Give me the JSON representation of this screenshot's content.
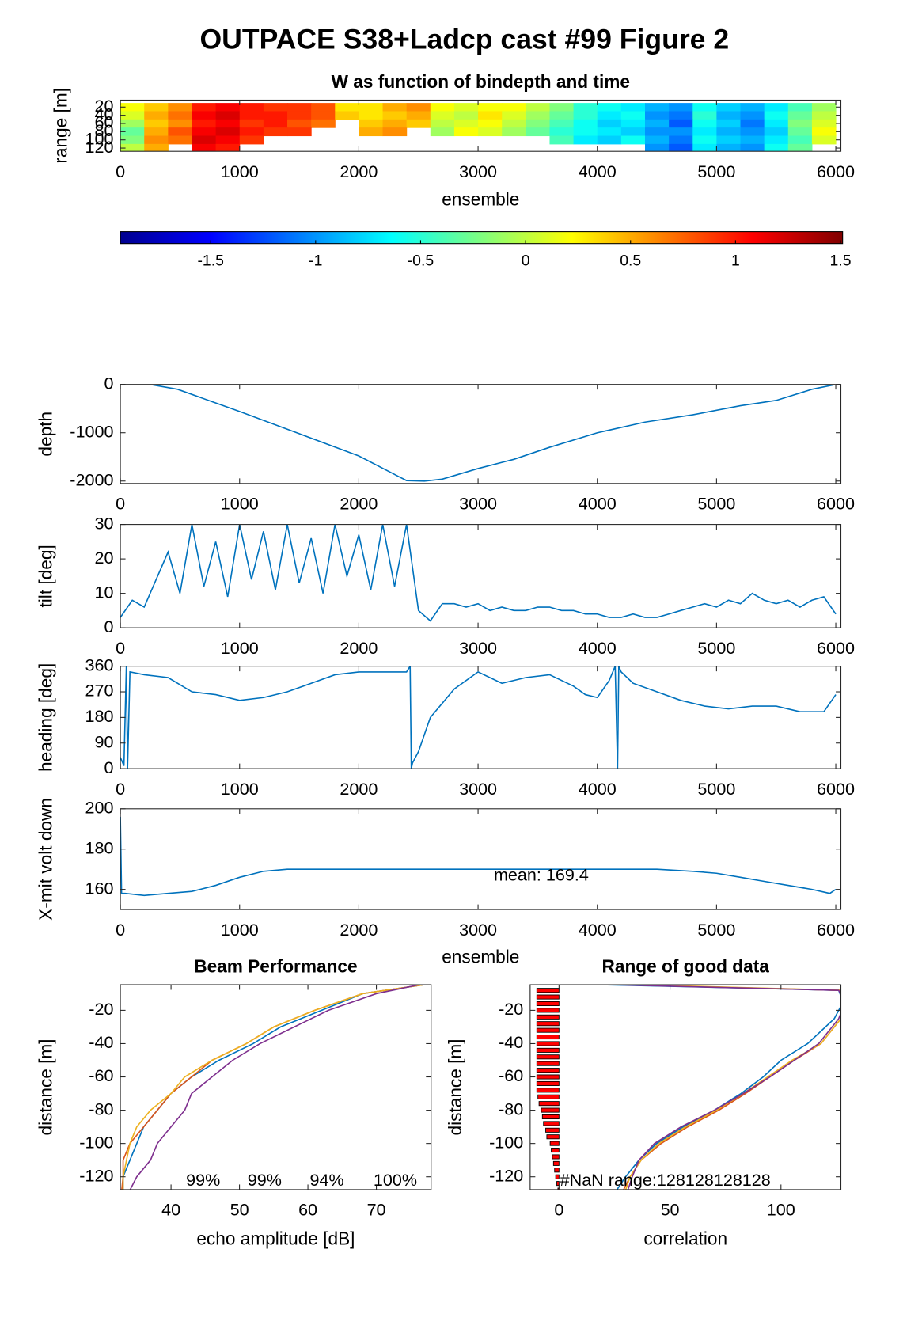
{
  "title": "OUTPACE S38+Ladcp cast #99 Figure 2",
  "chart_data": [
    {
      "type": "heatmap",
      "title": "W as function of bindepth and time",
      "xlabel": "ensemble",
      "ylabel": "range [m]",
      "colormap": "jet",
      "xlim": [
        0,
        6043
      ],
      "xticks": [
        0,
        1000,
        2000,
        3000,
        4000,
        5000,
        6000
      ],
      "ylim": [
        3,
        128
      ],
      "yreverse": true,
      "yticks": [
        20,
        40,
        60,
        80,
        100,
        120
      ],
      "x": [
        100,
        300,
        500,
        700,
        900,
        1100,
        1300,
        1500,
        1700,
        1900,
        2100,
        2300,
        2500,
        2700,
        2900,
        3100,
        3300,
        3500,
        3700,
        3900,
        4100,
        4300,
        4500,
        4700,
        4900,
        5100,
        5300,
        5500,
        5700,
        5900
      ],
      "y": [
        20,
        40,
        60,
        80,
        100,
        120
      ],
      "values": [
        [
          0.2,
          0.4,
          0.6,
          1.0,
          1.1,
          1.0,
          0.9,
          0.9,
          0.8,
          0.3,
          0.3,
          0.5,
          0.6,
          0.2,
          0.1,
          0.2,
          0.2,
          0.0,
          -0.2,
          -0.5,
          -0.6,
          -0.7,
          -0.9,
          -1.0,
          -0.6,
          -0.8,
          -0.9,
          -0.7,
          -0.4,
          -0.1
        ],
        [
          0.1,
          0.5,
          0.7,
          1.1,
          1.2,
          1.0,
          1.0,
          0.9,
          0.8,
          0.4,
          0.3,
          0.4,
          0.5,
          0.1,
          0.0,
          0.3,
          0.1,
          -0.1,
          -0.3,
          -0.5,
          -0.7,
          -0.6,
          -1.0,
          -1.1,
          -0.5,
          -0.9,
          -1.0,
          -0.6,
          -0.3,
          0.0
        ],
        [
          -0.1,
          0.4,
          0.6,
          1.0,
          1.1,
          0.9,
          1.0,
          0.8,
          0.7,
          null,
          0.4,
          0.5,
          0.4,
          0.0,
          0.1,
          0.2,
          0.0,
          -0.2,
          -0.4,
          -0.6,
          -0.8,
          -0.7,
          -0.9,
          -1.2,
          -0.6,
          -0.8,
          -1.1,
          -0.7,
          -0.2,
          0.1
        ],
        [
          -0.3,
          0.5,
          0.8,
          1.1,
          1.2,
          1.0,
          0.9,
          0.9,
          null,
          null,
          0.5,
          0.6,
          null,
          -0.1,
          0.2,
          0.1,
          -0.1,
          -0.3,
          -0.5,
          -0.6,
          -0.7,
          -0.8,
          -1.0,
          -1.0,
          -0.7,
          -0.9,
          -1.0,
          -0.8,
          -0.3,
          0.2
        ],
        [
          -0.2,
          0.6,
          0.7,
          1.2,
          1.1,
          0.9,
          null,
          null,
          null,
          null,
          null,
          null,
          null,
          null,
          null,
          null,
          null,
          null,
          -0.4,
          -0.7,
          -0.8,
          -0.6,
          -0.9,
          -1.1,
          -0.6,
          -0.8,
          -0.9,
          -0.7,
          -0.4,
          0.1
        ],
        [
          0.0,
          0.5,
          null,
          1.1,
          1.0,
          null,
          null,
          null,
          null,
          null,
          null,
          null,
          null,
          null,
          null,
          null,
          null,
          null,
          null,
          null,
          null,
          null,
          -1.0,
          -1.2,
          -0.7,
          -0.9,
          -1.0,
          -0.6,
          -0.3,
          null
        ]
      ],
      "clim": [
        -1.93,
        1.51
      ],
      "cticks": [
        -1.5,
        -1,
        -0.5,
        0,
        0.5,
        1,
        1.5
      ]
    },
    {
      "type": "line",
      "ylabel": "depth",
      "xlim": [
        0,
        6043
      ],
      "xticks": [
        0,
        1000,
        2000,
        3000,
        4000,
        5000,
        6000
      ],
      "ylim": [
        -2050,
        0
      ],
      "yticks": [
        0,
        -1000,
        -2000
      ],
      "x": [
        0,
        250,
        480,
        1000,
        1500,
        2000,
        2400,
        2550,
        2700,
        3000,
        3300,
        3600,
        4000,
        4400,
        4800,
        5200,
        5500,
        5800,
        6000
      ],
      "series": [
        {
          "color": "#0072bd",
          "values": [
            0,
            0,
            -100,
            -560,
            -1020,
            -1480,
            -1990,
            -2000,
            -1960,
            -1740,
            -1550,
            -1300,
            -1000,
            -780,
            -630,
            -440,
            -330,
            -100,
            0
          ]
        }
      ]
    },
    {
      "type": "line",
      "ylabel": "tilt [deg]",
      "xlim": [
        0,
        6043
      ],
      "xticks": [
        0,
        1000,
        2000,
        3000,
        4000,
        5000,
        6000
      ],
      "ylim": [
        0,
        30
      ],
      "yticks": [
        0,
        10,
        20,
        30
      ],
      "x": [
        0,
        100,
        200,
        300,
        400,
        500,
        600,
        700,
        800,
        900,
        1000,
        1100,
        1200,
        1300,
        1400,
        1500,
        1600,
        1700,
        1800,
        1900,
        2000,
        2100,
        2200,
        2300,
        2400,
        2500,
        2600,
        2700,
        2800,
        2900,
        3000,
        3100,
        3200,
        3300,
        3400,
        3500,
        3600,
        3700,
        3800,
        3900,
        4000,
        4100,
        4200,
        4300,
        4400,
        4500,
        4600,
        4700,
        4800,
        4900,
        5000,
        5100,
        5200,
        5300,
        5400,
        5500,
        5600,
        5700,
        5800,
        5900,
        6000
      ],
      "series": [
        {
          "color": "#0072bd",
          "values": [
            3,
            8,
            6,
            14,
            22,
            10,
            30,
            12,
            25,
            9,
            30,
            14,
            28,
            11,
            30,
            13,
            26,
            10,
            30,
            15,
            27,
            11,
            30,
            12,
            30,
            5,
            2,
            7,
            7,
            6,
            7,
            5,
            6,
            5,
            5,
            6,
            6,
            5,
            5,
            4,
            4,
            3,
            3,
            4,
            3,
            3,
            4,
            5,
            6,
            7,
            6,
            8,
            7,
            10,
            8,
            7,
            8,
            6,
            8,
            9,
            4
          ]
        }
      ]
    },
    {
      "type": "line",
      "ylabel": "heading [deg]",
      "xlim": [
        0,
        6043
      ],
      "xticks": [
        0,
        1000,
        2000,
        3000,
        4000,
        5000,
        6000
      ],
      "ylim": [
        0,
        360
      ],
      "yticks": [
        0,
        90,
        180,
        270,
        360
      ],
      "x": [
        0,
        30,
        50,
        60,
        80,
        200,
        400,
        600,
        800,
        1000,
        1200,
        1400,
        1600,
        1800,
        2000,
        2200,
        2400,
        2430,
        2440,
        2450,
        2500,
        2600,
        2800,
        3000,
        3200,
        3400,
        3600,
        3800,
        3900,
        4000,
        4100,
        4150,
        4170,
        4180,
        4200,
        4300,
        4500,
        4700,
        4900,
        5100,
        5300,
        5500,
        5700,
        5900,
        6000
      ],
      "series": [
        {
          "color": "#0072bd",
          "values": [
            40,
            10,
            360,
            0,
            340,
            330,
            320,
            270,
            260,
            240,
            250,
            270,
            300,
            330,
            340,
            340,
            340,
            360,
            0,
            20,
            60,
            180,
            280,
            340,
            300,
            320,
            330,
            290,
            260,
            250,
            310,
            360,
            0,
            360,
            340,
            300,
            270,
            240,
            220,
            210,
            220,
            220,
            200,
            200,
            260
          ]
        }
      ]
    },
    {
      "type": "line",
      "ylabel": "X-mit volt down",
      "xlabel": "ensemble",
      "annotation": "mean: 169.4",
      "xlim": [
        0,
        6043
      ],
      "xticks": [
        0,
        1000,
        2000,
        3000,
        4000,
        5000,
        6000
      ],
      "ylim": [
        150,
        200
      ],
      "yticks": [
        160,
        180,
        200
      ],
      "x": [
        0,
        10,
        40,
        200,
        400,
        600,
        800,
        1000,
        1200,
        1400,
        2000,
        3000,
        4000,
        4500,
        4800,
        5000,
        5200,
        5400,
        5600,
        5800,
        5950,
        6000
      ],
      "series": [
        {
          "color": "#0072bd",
          "values": [
            196,
            158,
            158,
            157,
            158,
            159,
            162,
            166,
            169,
            170,
            170,
            170,
            170,
            170,
            169,
            168,
            166,
            164,
            162,
            160,
            158,
            160
          ]
        }
      ]
    },
    {
      "type": "profile",
      "title": "Beam Performance",
      "xlabel": "echo amplitude [dB]",
      "ylabel": "distance [m]",
      "xlim": [
        32.6,
        78
      ],
      "xticks": [
        40,
        50,
        60,
        70
      ],
      "ylim": [
        -127.7,
        -4.6
      ],
      "yticks": [
        -20,
        -40,
        -60,
        -80,
        -100,
        -120
      ],
      "y": [
        -4,
        -10,
        -20,
        -30,
        -40,
        -50,
        -60,
        -70,
        -80,
        -90,
        -100,
        -110,
        -120,
        -128
      ],
      "series": [
        {
          "color": "#0072bd",
          "values": [
            78,
            68,
            62,
            56,
            52,
            47,
            43,
            40,
            38,
            36,
            35,
            34,
            33,
            33
          ]
        },
        {
          "color": "#d95319",
          "values": [
            78,
            68,
            61,
            55,
            51,
            46,
            43,
            40,
            38,
            36,
            34,
            33,
            33,
            32.8
          ]
        },
        {
          "color": "#edb120",
          "values": [
            78,
            68,
            61,
            55,
            51,
            46,
            42,
            40,
            37,
            35,
            34,
            33.5,
            33,
            33
          ]
        },
        {
          "color": "#7e2f8e",
          "values": [
            77,
            70,
            63,
            58,
            53,
            49,
            46,
            43,
            42,
            40,
            38,
            37,
            35,
            34
          ]
        }
      ],
      "annotations": [
        "99%",
        "99%",
        "94%",
        "100%"
      ]
    },
    {
      "type": "profile",
      "title": "Range of good data",
      "xlabel": "correlation",
      "ylabel": "distance [m]",
      "xlim": [
        -13,
        127
      ],
      "xticks": [
        0,
        50,
        100
      ],
      "ylim": [
        -127.7,
        -4.6
      ],
      "yticks": [
        -20,
        -40,
        -60,
        -80,
        -100,
        -120
      ],
      "y": [
        -4,
        -8,
        -15,
        -25,
        -40,
        -50,
        -60,
        -70,
        -80,
        -90,
        -100,
        -110,
        -120,
        -128
      ],
      "series": [
        {
          "color": "#0072bd",
          "values": [
            0,
            126,
            128,
            124,
            112,
            100,
            92,
            82,
            70,
            56,
            44,
            36,
            30,
            26
          ]
        },
        {
          "color": "#d95319",
          "values": [
            10,
            127,
            130,
            127,
            118,
            106,
            95,
            84,
            72,
            58,
            46,
            37,
            32,
            29
          ]
        },
        {
          "color": "#edb120",
          "values": [
            20,
            127,
            130,
            127,
            118,
            105,
            94,
            83,
            71,
            57,
            45,
            37,
            32,
            30
          ]
        },
        {
          "color": "#7e2f8e",
          "values": [
            5,
            126,
            129,
            126,
            117,
            106,
            95,
            83,
            70,
            55,
            43,
            36,
            33,
            31
          ]
        }
      ],
      "bars": {
        "color": "#ff0000",
        "y": [
          -8,
          -12,
          -16,
          -20,
          -24,
          -28,
          -32,
          -36,
          -40,
          -44,
          -48,
          -52,
          -56,
          -60,
          -64,
          -68,
          -72,
          -76,
          -80,
          -84,
          -88,
          -92,
          -96,
          -100,
          -104,
          -108,
          -112,
          -116,
          -120,
          -124,
          -128
        ],
        "values": [
          -10,
          -10,
          -10,
          -10,
          -10,
          -10,
          -10,
          -10,
          -10,
          -10,
          -10,
          -10,
          -10,
          -10,
          -10,
          -10,
          -9.5,
          -9,
          -8,
          -7.5,
          -7,
          -6,
          -5.5,
          -4,
          -3.5,
          -3,
          -2.5,
          -2,
          -1.5,
          -1,
          -0.5
        ]
      },
      "annotations": [
        "#NaN range:128128128128"
      ]
    }
  ]
}
